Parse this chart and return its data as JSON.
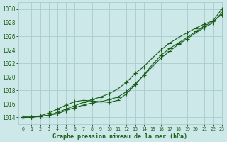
{
  "title": "Graphe pression niveau de la mer (hPa)",
  "background_color": "#cce8e8",
  "grid_color": "#aacccc",
  "line_color_dark": "#1a5c1a",
  "xlim": [
    -0.5,
    23
  ],
  "ylim": [
    1013.0,
    1031.0
  ],
  "yticks": [
    1014,
    1016,
    1018,
    1020,
    1022,
    1024,
    1026,
    1028,
    1030
  ],
  "xticks": [
    0,
    1,
    2,
    3,
    4,
    5,
    6,
    7,
    8,
    9,
    10,
    11,
    12,
    13,
    14,
    15,
    16,
    17,
    18,
    19,
    20,
    21,
    22,
    23
  ],
  "series1_x": [
    0,
    1,
    2,
    3,
    4,
    5,
    6,
    7,
    8,
    9,
    10,
    11,
    12,
    13,
    14,
    15,
    16,
    17,
    18,
    19,
    20,
    21,
    22,
    23
  ],
  "series1_y": [
    1014.0,
    1014.0,
    1014.1,
    1014.3,
    1014.7,
    1015.2,
    1015.7,
    1016.2,
    1016.6,
    1017.0,
    1017.5,
    1018.2,
    1019.2,
    1020.5,
    1021.5,
    1022.8,
    1024.0,
    1025.0,
    1025.8,
    1026.5,
    1027.2,
    1027.8,
    1028.3,
    1030.0
  ],
  "series2_x": [
    0,
    1,
    2,
    3,
    4,
    5,
    6,
    7,
    8,
    9,
    10,
    11,
    12,
    13,
    14,
    15,
    16,
    17,
    18,
    19,
    20,
    21,
    22,
    23
  ],
  "series2_y": [
    1014.0,
    1014.0,
    1014.1,
    1014.3,
    1014.5,
    1015.0,
    1015.4,
    1015.8,
    1016.1,
    1016.3,
    1016.6,
    1017.0,
    1017.8,
    1019.0,
    1020.2,
    1021.5,
    1022.8,
    1023.8,
    1024.8,
    1025.6,
    1026.5,
    1027.3,
    1028.0,
    1029.5
  ],
  "series3_x": [
    0,
    1,
    2,
    3,
    4,
    5,
    6,
    7,
    8,
    9,
    10,
    11,
    12,
    13,
    14,
    15,
    16,
    17,
    18,
    19,
    20,
    21,
    22,
    23
  ],
  "series3_y": [
    1014.0,
    1014.0,
    1014.2,
    1014.6,
    1015.2,
    1015.8,
    1016.3,
    1016.5,
    1016.4,
    1016.3,
    1016.2,
    1016.5,
    1017.5,
    1018.8,
    1020.3,
    1021.8,
    1023.2,
    1024.2,
    1025.0,
    1025.8,
    1026.7,
    1027.5,
    1028.2,
    1029.2
  ],
  "marker_size": 2.0,
  "line_width": 0.8
}
